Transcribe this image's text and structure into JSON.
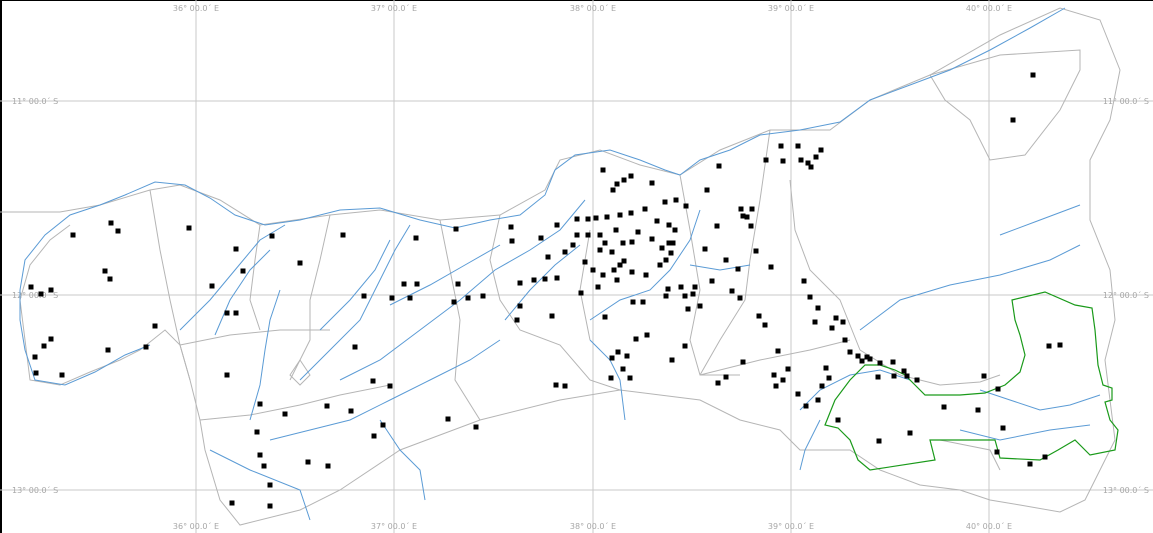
{
  "map": {
    "lon_labels": [
      "36° 00.0´ E",
      "37° 00.0´ E",
      "38° 00.0´ E",
      "39° 00.0´ E",
      "40° 00.0´ E"
    ],
    "lat_labels": [
      "11° 00.0´ S",
      "12° 00.0´ S",
      "13° 00.0´ S"
    ],
    "colors": {
      "graticule": "#c9c9c9",
      "boundary": "#b5b5b5",
      "river": "#5b9bd5",
      "protected_area": "#1a9a1a",
      "survey_point": "#000000"
    },
    "point_count": 205
  }
}
